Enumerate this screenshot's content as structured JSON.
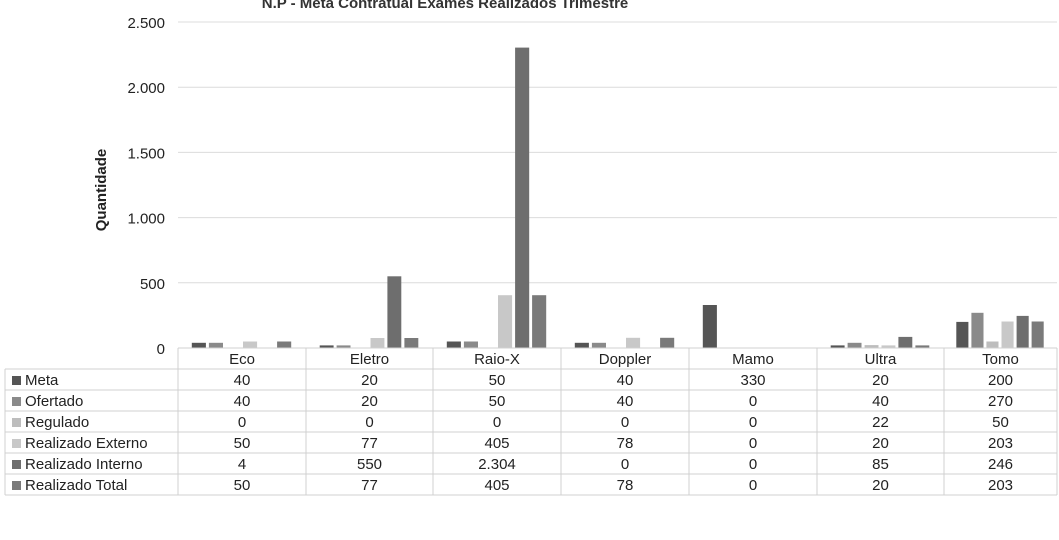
{
  "chart_data": {
    "type": "bar",
    "title": "N.P - Meta Contratual Exames Realizados Trimestre",
    "ylabel": "Quantidade",
    "xlabel": "",
    "ylim": [
      0,
      2500
    ],
    "yticks": [
      0,
      500,
      1000,
      1500,
      2000,
      2500
    ],
    "ytick_labels": [
      "0",
      "500",
      "1.000",
      "1.500",
      "2.000",
      "2.500"
    ],
    "grid": true,
    "legend": "data-table-left",
    "categories": [
      "Eco",
      "Eletro",
      "Raio-X",
      "Doppler",
      "Mamo",
      "Ultra",
      "Tomo"
    ],
    "series": [
      {
        "name": "Meta",
        "values": [
          40,
          20,
          50,
          40,
          330,
          20,
          200
        ],
        "labels": [
          "40",
          "20",
          "50",
          "40",
          "330",
          "20",
          "200"
        ],
        "color": "#555555"
      },
      {
        "name": "Ofertado",
        "values": [
          40,
          20,
          50,
          40,
          0,
          40,
          270
        ],
        "labels": [
          "40",
          "20",
          "50",
          "40",
          "0",
          "40",
          "270"
        ],
        "color": "#8a8a8a"
      },
      {
        "name": "Regulado",
        "values": [
          0,
          0,
          0,
          0,
          0,
          22,
          50
        ],
        "labels": [
          "0",
          "0",
          "0",
          "0",
          "0",
          "22",
          "50"
        ],
        "color": "#bdbdbd"
      },
      {
        "name": "Realizado Externo",
        "values": [
          50,
          77,
          405,
          78,
          0,
          20,
          203
        ],
        "labels": [
          "50",
          "77",
          "405",
          "78",
          "0",
          "20",
          "203"
        ],
        "color": "#c8c8c8"
      },
      {
        "name": "Realizado Interno",
        "values": [
          4,
          550,
          2304,
          0,
          0,
          85,
          246
        ],
        "labels": [
          "4",
          "550",
          "2.304",
          "0",
          "0",
          "85",
          "246"
        ],
        "color": "#6e6e6e"
      },
      {
        "name": "Realizado Total",
        "values": [
          50,
          77,
          405,
          78,
          0,
          20,
          203
        ],
        "labels": [
          "50",
          "77",
          "405",
          "78",
          "0",
          "20",
          "203"
        ],
        "color": "#7a7a7a"
      }
    ]
  }
}
